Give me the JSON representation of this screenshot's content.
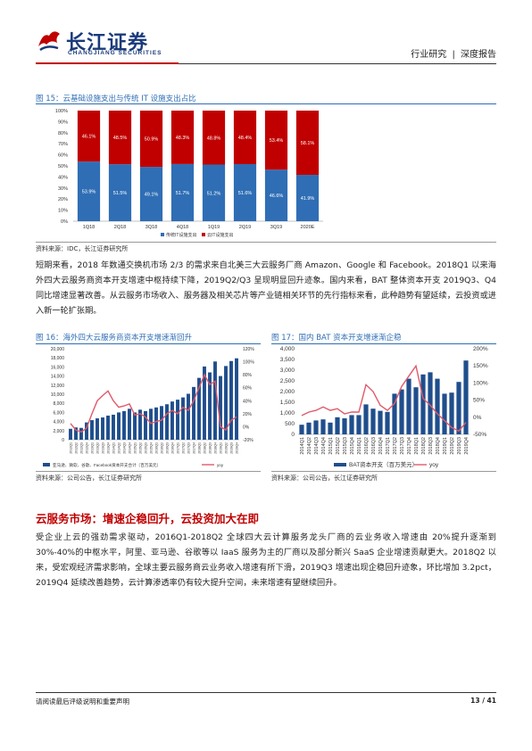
{
  "header": {
    "logo_cn": "长江证券",
    "logo_en": "CHANGJIANG SECURITIES",
    "category": "行业研究",
    "report_type": "深度报告"
  },
  "figure15": {
    "title": "图 15：云基础设施支出与传统 IT 设施支出占比",
    "source": "资料来源：IDC，长江证券研究所"
  },
  "para1": "短期来看，2018 年数通交换机市场 2/3 的需求来自北美三大云服务厂商 Amazon、Google 和 Facebook。2018Q1 以来海外四大云服务商资本开支增速中枢持续下降，2019Q2/Q3 呈现明显回升迹象。国内来看，BAT 整体资本开支 2019Q3、Q4 同比增速显著改善。从云服务市场收入、服务器及相关芯片等产业链相关环节的先行指标来看，此种趋势有望延续，云投资或进入新一轮扩张期。",
  "figure16": {
    "title": "图 16：海外四大云服务商资本开支增速渐回升",
    "source": "资料来源：公司公告，长江证券研究所"
  },
  "figure17": {
    "title": "图 17：国内 BAT 资本开支增速渐企稳",
    "source": "资料来源：公司公告，长江证券研究所"
  },
  "section": {
    "title": "云服务市场：增速企稳回升，云投资加大在即",
    "body": "受企业上云的强劲需求驱动，2016Q1-2018Q2 全球四大云计算服务龙头厂商的云业务收入增速由 20%提升逐渐到 30%-40%的中枢水平，阿里、亚马逊、谷歌等以 IaaS 服务为主的厂商以及部分新兴 SaaS 企业增速贡献更大。2018Q2 以来，受宏观经济需求影响，全球主要云服务商云业务收入增速有所下滑，2019Q3 增速出现企稳回升迹象，环比增加 3.2pct，2019Q4 延续改善趋势，云计算渗透率仍有较大提升空间，未来增速有望继续回升。"
  },
  "footer": {
    "disclaimer": "请阅读最后评级说明和重要声明",
    "page": "13 / 41"
  },
  "chart_data": [
    {
      "type": "bar",
      "stacked": true,
      "categories": [
        "1Q18",
        "2Q18",
        "3Q18",
        "4Q18",
        "1Q19",
        "2Q19",
        "3Q19",
        "2020E"
      ],
      "series": [
        {
          "name": "传统IT设施支出",
          "color": "#2f6eb5",
          "values": [
            53.9,
            51.5,
            49.1,
            51.7,
            51.2,
            51.6,
            46.6,
            41.9
          ]
        },
        {
          "name": "云IT设施支出",
          "color": "#c00000",
          "values": [
            46.1,
            48.5,
            50.9,
            48.3,
            48.8,
            48.4,
            53.4,
            58.1
          ]
        }
      ],
      "data_labels": {
        "bottom": [
          "53.9%",
          "51.5%",
          "49.1%",
          "51.7%",
          "51.2%",
          "51.6%",
          "46.6%",
          "41.9%"
        ],
        "top": [
          "46.1%",
          "48.5%",
          "50.9%",
          "48.3%",
          "48.8%",
          "48.4%",
          "53.4%",
          "58.1%"
        ]
      },
      "yticks": [
        "0%",
        "10%",
        "20%",
        "30%",
        "40%",
        "50%",
        "60%",
        "70%",
        "80%",
        "90%",
        "100%"
      ],
      "ylim": [
        0,
        100
      ],
      "legend_position": "bottom"
    },
    {
      "type": "bar",
      "categories": [
        "2012Q1",
        "2012Q2",
        "2012Q3",
        "2012Q4",
        "2013Q1",
        "2013Q2",
        "2013Q3",
        "2013Q4",
        "2014Q1",
        "2014Q2",
        "2014Q3",
        "2014Q4",
        "2015Q1",
        "2015Q2",
        "2015Q3",
        "2015Q4",
        "2016Q1",
        "2016Q2",
        "2016Q3",
        "2016Q4",
        "2017Q1",
        "2017Q2",
        "2017Q3",
        "2017Q4",
        "2018Q1",
        "2018Q2",
        "2018Q3",
        "2018Q4",
        "2019Q1",
        "2019Q2",
        "2019Q3",
        "2019Q4"
      ],
      "series": [
        {
          "name": "亚马逊、微软、谷歌、Facebook资本开支合计（百万美元）",
          "color": "#1f4e8c",
          "axis": "left",
          "values": [
            2400,
            2700,
            2600,
            3800,
            4300,
            4700,
            4900,
            5300,
            5500,
            6000,
            6300,
            6800,
            6000,
            6600,
            6300,
            6800,
            7100,
            7400,
            7800,
            8400,
            8800,
            9300,
            10100,
            11600,
            13600,
            16100,
            14800,
            17200,
            14000,
            16200,
            17300,
            17900
          ]
        },
        {
          "name": "yoy",
          "color": "#e05a6a",
          "axis": "right",
          "values": [
            5,
            -5,
            -8,
            -2,
            20,
            40,
            48,
            55,
            40,
            30,
            32,
            35,
            18,
            20,
            15,
            5,
            8,
            10,
            20,
            25,
            20,
            30,
            25,
            40,
            60,
            80,
            65,
            70,
            0,
            -5,
            10,
            15
          ]
        }
      ],
      "yticks_left": [
        "0",
        "2,000",
        "4,000",
        "6,000",
        "8,000",
        "10,000",
        "12,000",
        "14,000",
        "16,000",
        "18,000",
        "20,000"
      ],
      "ylim_left": [
        0,
        20000
      ],
      "yticks_right": [
        "-20%",
        "0%",
        "20%",
        "40%",
        "60%",
        "80%",
        "100%",
        "120%"
      ],
      "ylim_right": [
        -20,
        120
      ],
      "legend_position": "bottom"
    },
    {
      "type": "bar",
      "categories": [
        "2014Q1",
        "2014Q2",
        "2014Q3",
        "2014Q4",
        "2015Q1",
        "2015Q2",
        "2015Q3",
        "2015Q4",
        "2016Q1",
        "2016Q2",
        "2016Q3",
        "2016Q4",
        "2017Q1",
        "2017Q2",
        "2017Q3",
        "2017Q4",
        "2018Q1",
        "2018Q2",
        "2018Q3",
        "2018Q4",
        "2019Q1",
        "2019Q2",
        "2019Q3",
        "2019Q4"
      ],
      "series": [
        {
          "name": "BAT资本开支（百万美元）",
          "color": "#1f4e8c",
          "axis": "left",
          "values": [
            450,
            550,
            650,
            700,
            550,
            800,
            750,
            900,
            900,
            1400,
            1200,
            1100,
            1050,
            1900,
            2100,
            2600,
            2200,
            2800,
            2900,
            2600,
            1900,
            1950,
            2450,
            3450
          ]
        },
        {
          "name": "yoy",
          "color": "#e05a6a",
          "axis": "right",
          "values": [
            5,
            15,
            20,
            30,
            20,
            25,
            10,
            15,
            15,
            95,
            75,
            35,
            20,
            40,
            90,
            120,
            150,
            55,
            35,
            10,
            -10,
            -30,
            -40,
            -15
          ]
        }
      ],
      "yticks_left": [
        "0",
        "500",
        "1,000",
        "1,500",
        "2,000",
        "2,500",
        "3,000",
        "3,500",
        "4,000"
      ],
      "ylim_left": [
        0,
        4000
      ],
      "yticks_right": [
        "-50%",
        "0%",
        "50%",
        "100%",
        "150%",
        "200%"
      ],
      "ylim_right": [
        -50,
        200
      ],
      "legend_position": "bottom"
    }
  ]
}
